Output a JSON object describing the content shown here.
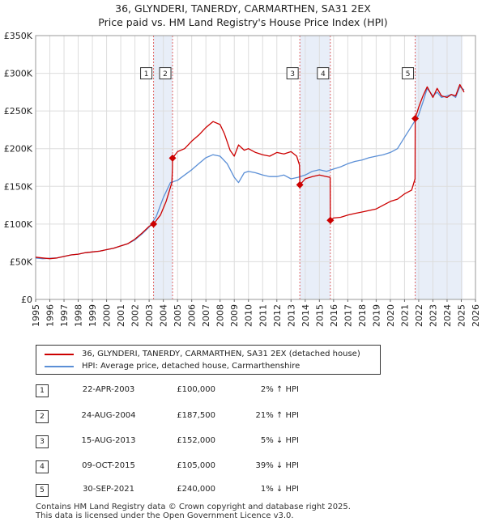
{
  "title_line1": "36, GLYNDERI, TANERDY, CARMARTHEN, SA31 2EX",
  "title_line2": "Price paid vs. HM Land Registry's House Price Index (HPI)",
  "legend": {
    "property": "36, GLYNDERI, TANERDY, CARMARTHEN, SA31 2EX (detached house)",
    "hpi": "HPI: Average price, detached house, Carmarthenshire"
  },
  "colors": {
    "property": "#cc0000",
    "hpi": "#5b8fd6",
    "shade": "#e8eef8",
    "vline": "#e06666",
    "grid": "#dddddd"
  },
  "sales": [
    {
      "num": "1",
      "date": "22-APR-2003",
      "price": "£100,000",
      "hpi": "2% ↑ HPI"
    },
    {
      "num": "2",
      "date": "24-AUG-2004",
      "price": "£187,500",
      "hpi": "21% ↑ HPI"
    },
    {
      "num": "3",
      "date": "15-AUG-2013",
      "price": "£152,000",
      "hpi": "5% ↓ HPI"
    },
    {
      "num": "4",
      "date": "09-OCT-2015",
      "price": "£105,000",
      "hpi": "39% ↓ HPI"
    },
    {
      "num": "5",
      "date": "30-SEP-2021",
      "price": "£240,000",
      "hpi": "1% ↓ HPI"
    }
  ],
  "footer": {
    "line1": "Contains HM Land Registry data © Crown copyright and database right 2025.",
    "line2": "This data is licensed under the Open Government Licence v3.0."
  },
  "chart_data": {
    "type": "line",
    "xlim": [
      1995,
      2026
    ],
    "ylim": [
      0,
      350000
    ],
    "yticks": [
      0,
      50000,
      100000,
      150000,
      200000,
      250000,
      300000,
      350000
    ],
    "ytick_labels": [
      "£0",
      "£50K",
      "£100K",
      "£150K",
      "£200K",
      "£250K",
      "£300K",
      "£350K"
    ],
    "xticks": [
      1995,
      1996,
      1997,
      1998,
      1999,
      2000,
      2001,
      2002,
      2003,
      2004,
      2005,
      2006,
      2007,
      2008,
      2009,
      2010,
      2011,
      2012,
      2013,
      2014,
      2015,
      2016,
      2017,
      2018,
      2019,
      2020,
      2021,
      2022,
      2023,
      2024,
      2025,
      2026
    ],
    "shaded_ranges": [
      [
        2003.31,
        2004.65
      ],
      [
        2013.62,
        2015.77
      ],
      [
        2021.75,
        2025.1
      ]
    ],
    "sale_points": [
      {
        "label": "1",
        "x": 2003.31,
        "y": 100000
      },
      {
        "label": "2",
        "x": 2004.65,
        "y": 187500
      },
      {
        "label": "3",
        "x": 2013.62,
        "y": 152000
      },
      {
        "label": "4",
        "x": 2015.77,
        "y": 105000
      },
      {
        "label": "5",
        "x": 2021.75,
        "y": 240000
      }
    ],
    "marker_label_y": 300000,
    "series": [
      {
        "name": "36, GLYNDERI, TANERDY, CARMARTHEN, SA31 2EX (detached house)",
        "x": [
          1995,
          1995.5,
          1996,
          1996.5,
          1997,
          1997.5,
          1998,
          1998.5,
          1999,
          1999.5,
          2000,
          2000.5,
          2001,
          2001.5,
          2002,
          2002.5,
          2003,
          2003.31,
          2003.8,
          2004.2,
          2004.6,
          2004.64,
          2004.65,
          2005,
          2005.5,
          2006,
          2006.5,
          2007,
          2007.5,
          2008,
          2008.3,
          2008.7,
          2009,
          2009.3,
          2009.7,
          2010,
          2010.5,
          2011,
          2011.5,
          2012,
          2012.5,
          2013,
          2013.4,
          2013.6,
          2013.62,
          2014,
          2014.5,
          2015,
          2015.5,
          2015.76,
          2015.77,
          2016,
          2016.5,
          2017,
          2017.5,
          2018,
          2018.5,
          2019,
          2019.5,
          2020,
          2020.5,
          2021,
          2021.5,
          2021.74,
          2021.75,
          2022,
          2022.3,
          2022.6,
          2023,
          2023.3,
          2023.6,
          2024,
          2024.3,
          2024.6,
          2024.9,
          2025.2
        ],
        "y": [
          56000,
          55000,
          54000,
          55000,
          57000,
          59000,
          60000,
          62000,
          63000,
          64000,
          66000,
          68000,
          71000,
          74000,
          80000,
          88000,
          97000,
          100000,
          112000,
          130000,
          155000,
          175000,
          187500,
          196000,
          200000,
          210000,
          218000,
          228000,
          236000,
          232000,
          220000,
          198000,
          190000,
          205000,
          198000,
          200000,
          195000,
          192000,
          190000,
          195000,
          193000,
          196000,
          190000,
          178000,
          152000,
          160000,
          163000,
          165000,
          163000,
          162000,
          105000,
          108000,
          109000,
          112000,
          114000,
          116000,
          118000,
          120000,
          125000,
          130000,
          133000,
          140000,
          145000,
          160000,
          240000,
          255000,
          270000,
          282000,
          268000,
          280000,
          270000,
          268000,
          272000,
          270000,
          285000,
          275000
        ]
      },
      {
        "name": "HPI: Average price, detached house, Carmarthenshire",
        "x": [
          1995,
          1995.5,
          1996,
          1996.5,
          1997,
          1997.5,
          1998,
          1998.5,
          1999,
          1999.5,
          2000,
          2000.5,
          2001,
          2001.5,
          2002,
          2002.5,
          2003,
          2003.5,
          2004,
          2004.5,
          2005,
          2005.5,
          2006,
          2006.5,
          2007,
          2007.5,
          2008,
          2008.5,
          2009,
          2009.3,
          2009.7,
          2010,
          2010.5,
          2011,
          2011.5,
          2012,
          2012.5,
          2013,
          2013.5,
          2014,
          2014.5,
          2015,
          2015.5,
          2016,
          2016.5,
          2017,
          2017.5,
          2018,
          2018.5,
          2019,
          2019.5,
          2020,
          2020.5,
          2021,
          2021.5,
          2022,
          2022.3,
          2022.6,
          2023,
          2023.3,
          2023.6,
          2024,
          2024.3,
          2024.6,
          2024.9,
          2025.2
        ],
        "y": [
          55000,
          54000,
          54500,
          55000,
          57000,
          59000,
          60000,
          62000,
          63000,
          64000,
          66000,
          68000,
          71000,
          74000,
          79000,
          87000,
          96000,
          110000,
          135000,
          155000,
          158000,
          165000,
          172000,
          180000,
          188000,
          192000,
          190000,
          180000,
          162000,
          155000,
          168000,
          170000,
          168000,
          165000,
          163000,
          163000,
          165000,
          160000,
          162000,
          165000,
          170000,
          172000,
          170000,
          173000,
          176000,
          180000,
          183000,
          185000,
          188000,
          190000,
          192000,
          195000,
          200000,
          215000,
          230000,
          245000,
          262000,
          280000,
          270000,
          275000,
          268000,
          270000,
          272000,
          268000,
          282000,
          278000
        ]
      }
    ]
  }
}
